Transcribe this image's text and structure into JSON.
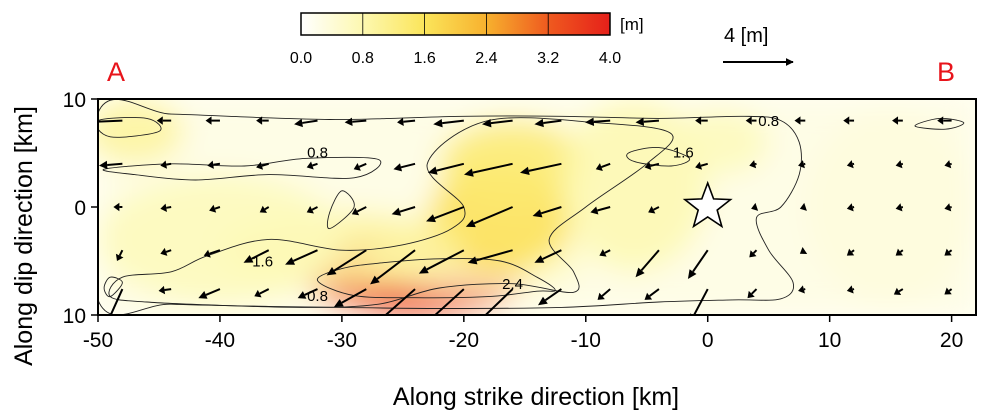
{
  "chart_data": {
    "type": "heatmap",
    "colorbar": {
      "unit_label": "[m]",
      "ticks": [
        "0.0",
        "0.8",
        "1.6",
        "2.4",
        "3.2",
        "4.0"
      ],
      "range": [
        0,
        4.0
      ],
      "colors": [
        "#ffffff",
        "#fdf8b0",
        "#fbe55a",
        "#f7b12e",
        "#ef5a1f",
        "#e6201a"
      ]
    },
    "scale_arrow": {
      "label": "4 [m]",
      "value_m": 4
    },
    "end_labels": {
      "left": "A",
      "right": "B"
    },
    "xlabel": "Along strike direction [km]",
    "ylabel": "Along dip direction [km]",
    "xlim": [
      -50,
      22
    ],
    "ylim": [
      10,
      -10
    ],
    "xticks": [
      "-50",
      "-40",
      "-30",
      "-20",
      "-10",
      "0",
      "10",
      "20"
    ],
    "yticks": [
      "10",
      "0",
      "10"
    ],
    "xtick_values": [
      -50,
      -40,
      -30,
      -20,
      -10,
      0,
      10,
      20
    ],
    "ytick_values": [
      -10,
      0,
      10
    ],
    "hypocenter": {
      "x": 0,
      "y": 0
    },
    "contour_labels": [
      {
        "text": "0.8",
        "x": -32,
        "y": -8.7
      },
      {
        "text": "2.4",
        "x": -16,
        "y": -7.6
      },
      {
        "text": "1.6",
        "x": -36.5,
        "y": -5.5
      },
      {
        "text": "0.8",
        "x": -32,
        "y": 4.6
      },
      {
        "text": "1.6",
        "x": -2,
        "y": 4.6
      },
      {
        "text": "0.8",
        "x": 5,
        "y": 7.5
      }
    ],
    "slip_patches": [
      {
        "x": -24,
        "y": -6.5,
        "rx": 9,
        "ry": 3.5,
        "amp": 3.6
      },
      {
        "x": -19,
        "y": -5,
        "rx": 9,
        "ry": 3,
        "amp": 0.6
      },
      {
        "x": -17,
        "y": -1,
        "rx": 6,
        "ry": 5,
        "amp": 1.7
      },
      {
        "x": -16,
        "y": 4,
        "rx": 6,
        "ry": 4,
        "amp": 1.4
      },
      {
        "x": -30,
        "y": -4,
        "rx": 10,
        "ry": 3.5,
        "amp": 1.0
      },
      {
        "x": -40,
        "y": -3,
        "rx": 10,
        "ry": 6,
        "amp": 0.7
      },
      {
        "x": -47,
        "y": 7,
        "rx": 4,
        "ry": 3,
        "amp": 1.0
      },
      {
        "x": -6,
        "y": 2,
        "rx": 6,
        "ry": 8,
        "amp": 0.8
      },
      {
        "x": 1,
        "y": 6,
        "rx": 4,
        "ry": 3,
        "amp": 0.7
      },
      {
        "x": 15,
        "y": 0,
        "rx": 7,
        "ry": 9,
        "amp": 0.35
      }
    ],
    "contours": [
      {
        "level": 0.8,
        "points": [
          [
            -50,
            -8.6
          ],
          [
            -44,
            -9
          ],
          [
            -36,
            -9.2
          ],
          [
            -30,
            -9.3
          ],
          [
            -22,
            -9.4
          ],
          [
            -12,
            -9.3
          ],
          [
            -4,
            -8.8
          ],
          [
            2,
            -8.6
          ],
          [
            6,
            -8.5
          ],
          [
            7,
            -7
          ],
          [
            5,
            -4
          ],
          [
            4,
            -1
          ],
          [
            6,
            0
          ],
          [
            7.5,
            3
          ],
          [
            7.5,
            6
          ],
          [
            6,
            8
          ],
          [
            3,
            8.4
          ],
          [
            -4,
            8.2
          ],
          [
            -12,
            8.4
          ],
          [
            -20,
            8.4
          ],
          [
            -26,
            8.2
          ],
          [
            -31,
            8.1
          ],
          [
            -37,
            8.3
          ],
          [
            -44,
            8.6
          ],
          [
            -50,
            8.7
          ]
        ]
      },
      {
        "level": 1.6,
        "points": [
          [
            -49,
            -8.3
          ],
          [
            -46,
            -8.8
          ],
          [
            -40,
            -9.1
          ],
          [
            -33,
            -9.3
          ],
          [
            -27,
            -9
          ],
          [
            -22,
            -7.5
          ],
          [
            -16,
            -7.1
          ],
          [
            -11,
            -7.9
          ],
          [
            -11,
            -6
          ],
          [
            -13,
            -3
          ],
          [
            -10,
            0
          ],
          [
            -5,
            4
          ],
          [
            -3,
            6.8
          ],
          [
            -9,
            7.8
          ],
          [
            -18,
            8
          ],
          [
            -23,
            4
          ],
          [
            -20,
            0
          ],
          [
            -21,
            -2
          ],
          [
            -25,
            -3.5
          ],
          [
            -30,
            -4
          ],
          [
            -36,
            -3
          ],
          [
            -41,
            -4.5
          ],
          [
            -44,
            -6
          ],
          [
            -48,
            -6.5
          ]
        ]
      },
      {
        "level": 2.4,
        "points": [
          [
            -32,
            -6.8
          ],
          [
            -29,
            -8.2
          ],
          [
            -24,
            -8.4
          ],
          [
            -18,
            -8.3
          ],
          [
            -14,
            -7.8
          ],
          [
            -12.5,
            -7.7
          ],
          [
            -14,
            -6.5
          ],
          [
            -17,
            -5
          ],
          [
            -22,
            -4.8
          ],
          [
            -27,
            -5.2
          ],
          [
            -30,
            -5.7
          ]
        ]
      },
      {
        "level": 0.8,
        "points": [
          [
            -49,
            -8.3
          ],
          [
            -49.5,
            -7.5
          ],
          [
            -49,
            -6.5
          ],
          [
            -48,
            -7
          ]
        ]
      },
      {
        "level": 0.8,
        "points": [
          [
            -31,
            -2
          ],
          [
            -29,
            0
          ],
          [
            -30,
            1.5
          ],
          [
            -31,
            -0.5
          ]
        ]
      },
      {
        "level": 0.8,
        "points": [
          [
            -49.5,
            3.5
          ],
          [
            -44,
            4
          ],
          [
            -38,
            3.8
          ],
          [
            -33,
            4.5
          ],
          [
            -27,
            4.4
          ],
          [
            -29,
            2.7
          ],
          [
            -36,
            3
          ],
          [
            -42,
            2.5
          ],
          [
            -47,
            3
          ]
        ]
      },
      {
        "level": 0.8,
        "points": [
          [
            -49,
            6.5
          ],
          [
            -45,
            7
          ],
          [
            -46,
            8.2
          ],
          [
            -50,
            8
          ]
        ]
      },
      {
        "level": 0.8,
        "points": [
          [
            -6,
            4.2
          ],
          [
            -3,
            3.8
          ],
          [
            -1.5,
            4.5
          ],
          [
            -4,
            5.5
          ],
          [
            -6.5,
            5
          ]
        ]
      },
      {
        "level": 0.8,
        "points": [
          [
            17,
            7.5
          ],
          [
            19.5,
            7.2
          ],
          [
            21,
            7.8
          ],
          [
            19,
            8.2
          ]
        ]
      }
    ],
    "slip_vectors": [
      {
        "x": -48,
        "y": -7.6,
        "dx": -0.9,
        "dy": 2.0
      },
      {
        "x": -44,
        "y": -7.6,
        "dx": -0.7,
        "dy": 0.1
      },
      {
        "x": -40,
        "y": -7.6,
        "dx": -1.2,
        "dy": 0.5
      },
      {
        "x": -36,
        "y": -7.6,
        "dx": -0.8,
        "dy": 0.4
      },
      {
        "x": -32,
        "y": -7.6,
        "dx": -1.1,
        "dy": 0.5
      },
      {
        "x": -28,
        "y": -7.6,
        "dx": -1.8,
        "dy": 1.0
      },
      {
        "x": -24,
        "y": -7.6,
        "dx": -2.6,
        "dy": 2.3
      },
      {
        "x": -20,
        "y": -7.6,
        "dx": -3.2,
        "dy": 2.9
      },
      {
        "x": -16,
        "y": -7.6,
        "dx": -2.6,
        "dy": 2.5
      },
      {
        "x": -12,
        "y": -7.6,
        "dx": -1.3,
        "dy": 0.9
      },
      {
        "x": -8,
        "y": -7.6,
        "dx": -0.7,
        "dy": 0.6
      },
      {
        "x": -4,
        "y": -7.6,
        "dx": -0.8,
        "dy": 0.6
      },
      {
        "x": 0,
        "y": -7.6,
        "dx": -1.0,
        "dy": 1.9
      },
      {
        "x": 4,
        "y": -7.6,
        "dx": -0.5,
        "dy": 0.5
      },
      {
        "x": 8,
        "y": -7.6,
        "dx": -0.4,
        "dy": 0.1
      },
      {
        "x": 12,
        "y": -7.6,
        "dx": -0.4,
        "dy": 0.1
      },
      {
        "x": 16,
        "y": -7.6,
        "dx": -0.5,
        "dy": 0.3
      },
      {
        "x": 20,
        "y": -7.6,
        "dx": -0.4,
        "dy": 0.3
      },
      {
        "x": -48,
        "y": -4.0,
        "dx": -0.3,
        "dy": 0.6
      },
      {
        "x": -44,
        "y": -4.0,
        "dx": -0.6,
        "dy": 0.2
      },
      {
        "x": -40,
        "y": -4.0,
        "dx": -0.9,
        "dy": 0.3
      },
      {
        "x": -36,
        "y": -4.0,
        "dx": -1.4,
        "dy": 0.7
      },
      {
        "x": -32,
        "y": -4.0,
        "dx": -1.8,
        "dy": 0.8
      },
      {
        "x": -28,
        "y": -4.0,
        "dx": -2.2,
        "dy": 1.4
      },
      {
        "x": -24,
        "y": -4.0,
        "dx": -2.5,
        "dy": 1.9
      },
      {
        "x": -20,
        "y": -4.0,
        "dx": -2.5,
        "dy": 1.3
      },
      {
        "x": -16,
        "y": -4.0,
        "dx": -2.5,
        "dy": 0.7
      },
      {
        "x": -12,
        "y": -4.0,
        "dx": -1.5,
        "dy": 0.7
      },
      {
        "x": -8,
        "y": -4.0,
        "dx": -0.6,
        "dy": 0.3
      },
      {
        "x": -4,
        "y": -4.0,
        "dx": -1.3,
        "dy": 1.5
      },
      {
        "x": 0,
        "y": -4.0,
        "dx": -1.1,
        "dy": 1.6
      },
      {
        "x": 4,
        "y": -4.0,
        "dx": -0.4,
        "dy": 0.4
      },
      {
        "x": 8,
        "y": -4.0,
        "dx": -0.3,
        "dy": 0.2
      },
      {
        "x": 12,
        "y": -4.0,
        "dx": -0.4,
        "dy": 0.3
      },
      {
        "x": 16,
        "y": -4.0,
        "dx": -0.4,
        "dy": 0.3
      },
      {
        "x": 20,
        "y": -4.0,
        "dx": -0.4,
        "dy": 0.3
      },
      {
        "x": -48,
        "y": 0,
        "dx": -0.5,
        "dy": 0.0
      },
      {
        "x": -44,
        "y": 0,
        "dx": -0.6,
        "dy": 0.1
      },
      {
        "x": -40,
        "y": 0,
        "dx": -0.6,
        "dy": 0.2
      },
      {
        "x": -36,
        "y": 0,
        "dx": -0.5,
        "dy": 0.3
      },
      {
        "x": -32,
        "y": 0,
        "dx": -0.6,
        "dy": 0.3
      },
      {
        "x": -28,
        "y": 0,
        "dx": -0.8,
        "dy": 0.4
      },
      {
        "x": -24,
        "y": 0,
        "dx": -1.3,
        "dy": 0.4
      },
      {
        "x": -20,
        "y": 0,
        "dx": -2.1,
        "dy": 0.8
      },
      {
        "x": -16,
        "y": 0,
        "dx": -2.6,
        "dy": 1.1
      },
      {
        "x": -12,
        "y": 0,
        "dx": -1.6,
        "dy": 0.5
      },
      {
        "x": -8,
        "y": 0,
        "dx": -1.1,
        "dy": 0.3
      },
      {
        "x": -4,
        "y": 0,
        "dx": -0.6,
        "dy": 0.3
      },
      {
        "x": 4,
        "y": 0,
        "dx": -0.3,
        "dy": 0.1
      },
      {
        "x": 8,
        "y": 0,
        "dx": -0.3,
        "dy": 0.1
      },
      {
        "x": 12,
        "y": 0,
        "dx": -0.4,
        "dy": 0.1
      },
      {
        "x": 16,
        "y": 0,
        "dx": -0.4,
        "dy": 0.1
      },
      {
        "x": 20,
        "y": 0,
        "dx": -0.4,
        "dy": 0.1
      },
      {
        "x": -48,
        "y": 4.0,
        "dx": -1.3,
        "dy": 0.1
      },
      {
        "x": -44,
        "y": 4.0,
        "dx": -0.6,
        "dy": 0.1
      },
      {
        "x": -40,
        "y": 4.0,
        "dx": -0.7,
        "dy": 0.1
      },
      {
        "x": -36,
        "y": 4.0,
        "dx": -0.7,
        "dy": 0.2
      },
      {
        "x": -32,
        "y": 4.0,
        "dx": -0.6,
        "dy": 0.2
      },
      {
        "x": -28,
        "y": 4.0,
        "dx": -0.7,
        "dy": 0.3
      },
      {
        "x": -24,
        "y": 4.0,
        "dx": -1.2,
        "dy": 0.3
      },
      {
        "x": -20,
        "y": 4.0,
        "dx": -2.0,
        "dy": 0.5
      },
      {
        "x": -16,
        "y": 4.0,
        "dx": -2.7,
        "dy": 0.6
      },
      {
        "x": -12,
        "y": 4.0,
        "dx": -2.3,
        "dy": 0.5
      },
      {
        "x": -8,
        "y": 4.0,
        "dx": -0.8,
        "dy": 0.3
      },
      {
        "x": -4,
        "y": 4.0,
        "dx": -0.8,
        "dy": 0.2
      },
      {
        "x": 0,
        "y": 4.0,
        "dx": -0.7,
        "dy": 0.2
      },
      {
        "x": 4,
        "y": 4.0,
        "dx": -0.4,
        "dy": 0.1
      },
      {
        "x": 8,
        "y": 4.0,
        "dx": -0.4,
        "dy": 0.1
      },
      {
        "x": 12,
        "y": 4.0,
        "dx": -0.4,
        "dy": 0.1
      },
      {
        "x": 16,
        "y": 4.0,
        "dx": -0.4,
        "dy": 0.1
      },
      {
        "x": 20,
        "y": 4.0,
        "dx": -0.4,
        "dy": 0.1
      },
      {
        "x": -48,
        "y": 8.0,
        "dx": -2.5,
        "dy": 0.1
      },
      {
        "x": -44,
        "y": 8.0,
        "dx": -0.8,
        "dy": 0.0
      },
      {
        "x": -40,
        "y": 8.0,
        "dx": -0.8,
        "dy": 0.0
      },
      {
        "x": -36,
        "y": 8.0,
        "dx": -0.7,
        "dy": 0.0
      },
      {
        "x": -32,
        "y": 8.0,
        "dx": -1.3,
        "dy": 0.2
      },
      {
        "x": -28,
        "y": 8.0,
        "dx": -1.2,
        "dy": 0.1
      },
      {
        "x": -24,
        "y": 8.0,
        "dx": -1.0,
        "dy": 0.1
      },
      {
        "x": -20,
        "y": 8.0,
        "dx": -1.7,
        "dy": 0.2
      },
      {
        "x": -16,
        "y": 8.0,
        "dx": -1.7,
        "dy": 0.2
      },
      {
        "x": -12,
        "y": 8.0,
        "dx": -1.5,
        "dy": 0.2
      },
      {
        "x": -8,
        "y": 8.0,
        "dx": -1.4,
        "dy": 0.1
      },
      {
        "x": -4,
        "y": 8.0,
        "dx": -1.3,
        "dy": 0.1
      },
      {
        "x": 0,
        "y": 8.0,
        "dx": -0.7,
        "dy": 0.0
      },
      {
        "x": 4,
        "y": 8.0,
        "dx": -0.6,
        "dy": 0.0
      },
      {
        "x": 8,
        "y": 8.0,
        "dx": -0.6,
        "dy": 0.0
      },
      {
        "x": 12,
        "y": 8.0,
        "dx": -0.6,
        "dy": 0.0
      },
      {
        "x": 16,
        "y": 8.0,
        "dx": -0.6,
        "dy": 0.0
      },
      {
        "x": 20,
        "y": 8.0,
        "dx": -0.8,
        "dy": 0.0
      }
    ]
  }
}
